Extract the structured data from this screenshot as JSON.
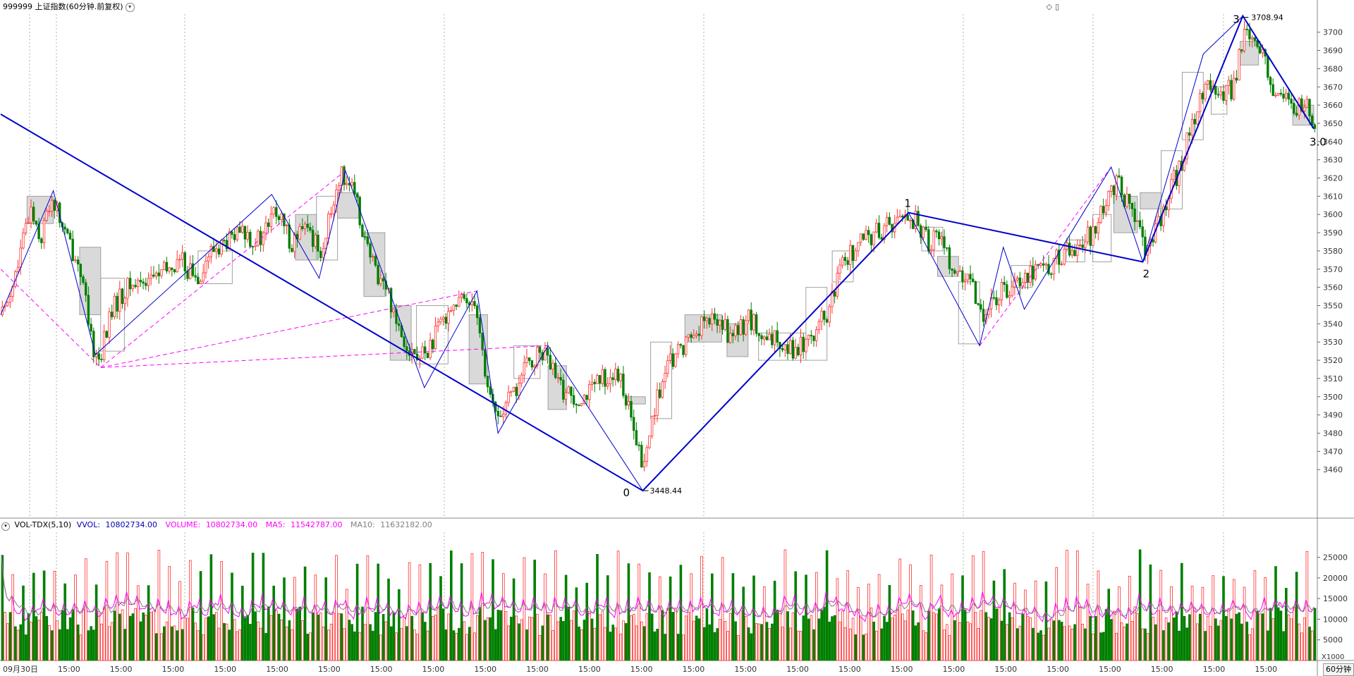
{
  "window": {
    "title": "999999 上证指数(60分钟.前复权)",
    "dropdown_icon": "chevron-down-icon",
    "top_right_icons": [
      "diamond-icon",
      "panel-icon"
    ]
  },
  "markers": {
    "pivot_labels": [
      "0",
      "1",
      "2",
      "3",
      "3.0"
    ],
    "low_price": "3448.44",
    "high_price": "3708.94"
  },
  "indicator": {
    "name": "VOL-TDX(5,10)",
    "vvol_label": "VVOL:",
    "vvol_value": "10802734.00",
    "volume_label": "VOLUME:",
    "volume_value": "10802734.00",
    "ma5_label": "MA5:",
    "ma5_value": "11542787.00",
    "ma10_label": "MA10:",
    "ma10_value": "11632182.00",
    "multiplier_label": "X1000"
  },
  "footer": {
    "period": "60分钟",
    "x_labels": [
      "09月30日",
      "15:00",
      "15:00",
      "15:00",
      "15:00",
      "15:00",
      "15:00",
      "15:00",
      "15:00",
      "15:00",
      "15:00",
      "15:00",
      "15:00",
      "15:00",
      "15:00",
      "15:00",
      "15:00",
      "15:00",
      "15:00",
      "15:00",
      "15:00",
      "15:00",
      "15:00",
      "15:00",
      "15:00"
    ]
  },
  "colors": {
    "up": "#ff3030",
    "down": "#007f00",
    "trend_line": "#0000cc",
    "dash_line": "#ff00ff",
    "ma5": "#ff00ff",
    "ma10": "#808080",
    "box_fill": "#d9d9d9"
  },
  "chart_data": {
    "type": "candlestick",
    "price_axis": {
      "ticks": [
        3460,
        3470,
        3480,
        3490,
        3500,
        3510,
        3520,
        3530,
        3540,
        3550,
        3560,
        3570,
        3580,
        3590,
        3600,
        3610,
        3620,
        3630,
        3640,
        3650,
        3660,
        3670,
        3680,
        3690,
        3700
      ]
    },
    "volume_axis": {
      "ticks": [
        5000,
        10000,
        15000,
        20000,
        25000
      ]
    },
    "pivots": [
      {
        "label": "0",
        "bar": 244,
        "price": 3448.44
      },
      {
        "label": "1",
        "bar": 345,
        "price": 3601
      },
      {
        "label": "2",
        "bar": 434,
        "price": 3574
      },
      {
        "label": "3",
        "bar": 472,
        "price": 3708.94
      },
      {
        "label": "3.0",
        "bar": 499,
        "price": 3647
      }
    ],
    "trend_points": [
      {
        "bar": 0,
        "price": 3655
      },
      {
        "bar": 244,
        "price": 3448.44
      },
      {
        "bar": 345,
        "price": 3601
      },
      {
        "bar": 434,
        "price": 3574
      },
      {
        "bar": 472,
        "price": 3708.94
      },
      {
        "bar": 499,
        "price": 3647
      }
    ],
    "zigzag_points": [
      {
        "bar": 0,
        "price": 3545
      },
      {
        "bar": 20,
        "price": 3613
      },
      {
        "bar": 36,
        "price": 3523
      },
      {
        "bar": 103,
        "price": 3611
      },
      {
        "bar": 121,
        "price": 3565
      },
      {
        "bar": 131,
        "price": 3624
      },
      {
        "bar": 161,
        "price": 3505
      },
      {
        "bar": 181,
        "price": 3558
      },
      {
        "bar": 189,
        "price": 3480
      },
      {
        "bar": 208,
        "price": 3528
      },
      {
        "bar": 244,
        "price": 3448.44
      },
      {
        "bar": 345,
        "price": 3601
      },
      {
        "bar": 372,
        "price": 3528
      },
      {
        "bar": 381,
        "price": 3582
      },
      {
        "bar": 389,
        "price": 3548
      },
      {
        "bar": 422,
        "price": 3626
      },
      {
        "bar": 434,
        "price": 3574
      },
      {
        "bar": 457,
        "price": 3688
      },
      {
        "bar": 472,
        "price": 3708.94
      },
      {
        "bar": 499,
        "price": 3647
      }
    ],
    "dash_lines": [
      {
        "from_bar": 0,
        "from_price": 3570,
        "to_bar": 38,
        "to_price": 3516
      },
      {
        "from_bar": 38,
        "from_price": 3516,
        "to_bar": 131,
        "to_price": 3624
      },
      {
        "from_bar": 38,
        "from_price": 3516,
        "to_bar": 181,
        "to_price": 3558
      },
      {
        "from_bar": 38,
        "from_price": 3516,
        "to_bar": 208,
        "to_price": 3528
      },
      {
        "from_bar": 372,
        "from_price": 3528,
        "to_bar": 422,
        "to_price": 3626
      }
    ],
    "boxes": [
      {
        "from_bar": 10,
        "to_bar": 20,
        "top": 3610,
        "bottom": 3595,
        "filled": true
      },
      {
        "from_bar": 30,
        "to_bar": 38,
        "top": 3582,
        "bottom": 3545,
        "filled": true
      },
      {
        "from_bar": 38,
        "to_bar": 47,
        "top": 3565,
        "bottom": 3525,
        "filled": false
      },
      {
        "from_bar": 75,
        "to_bar": 88,
        "top": 3580,
        "bottom": 3562,
        "filled": false
      },
      {
        "from_bar": 112,
        "to_bar": 120,
        "top": 3600,
        "bottom": 3575,
        "filled": true
      },
      {
        "from_bar": 120,
        "to_bar": 128,
        "top": 3610,
        "bottom": 3575,
        "filled": false
      },
      {
        "from_bar": 128,
        "to_bar": 136,
        "top": 3612,
        "bottom": 3598,
        "filled": true
      },
      {
        "from_bar": 138,
        "to_bar": 146,
        "top": 3590,
        "bottom": 3555,
        "filled": true
      },
      {
        "from_bar": 148,
        "to_bar": 156,
        "top": 3550,
        "bottom": 3520,
        "filled": true
      },
      {
        "from_bar": 158,
        "to_bar": 170,
        "top": 3550,
        "bottom": 3518,
        "filled": false
      },
      {
        "from_bar": 178,
        "to_bar": 185,
        "top": 3545,
        "bottom": 3507,
        "filled": true
      },
      {
        "from_bar": 195,
        "to_bar": 205,
        "top": 3528,
        "bottom": 3510,
        "filled": false
      },
      {
        "from_bar": 208,
        "to_bar": 215,
        "top": 3517,
        "bottom": 3493,
        "filled": true
      },
      {
        "from_bar": 238,
        "to_bar": 245,
        "top": 3500,
        "bottom": 3496,
        "filled": true
      },
      {
        "from_bar": 247,
        "to_bar": 255,
        "top": 3530,
        "bottom": 3488,
        "filled": false
      },
      {
        "from_bar": 260,
        "to_bar": 274,
        "top": 3545,
        "bottom": 3530,
        "filled": true
      },
      {
        "from_bar": 276,
        "to_bar": 284,
        "top": 3540,
        "bottom": 3522,
        "filled": true
      },
      {
        "from_bar": 288,
        "to_bar": 306,
        "top": 3535,
        "bottom": 3520,
        "filled": false
      },
      {
        "from_bar": 306,
        "to_bar": 314,
        "top": 3560,
        "bottom": 3520,
        "filled": false
      },
      {
        "from_bar": 316,
        "to_bar": 324,
        "top": 3580,
        "bottom": 3563,
        "filled": false
      },
      {
        "from_bar": 350,
        "to_bar": 358,
        "top": 3593,
        "bottom": 3580,
        "filled": false
      },
      {
        "from_bar": 356,
        "to_bar": 364,
        "top": 3577,
        "bottom": 3566,
        "filled": true
      },
      {
        "from_bar": 364,
        "to_bar": 372,
        "top": 3563,
        "bottom": 3529,
        "filled": false
      },
      {
        "from_bar": 384,
        "to_bar": 392,
        "top": 3572,
        "bottom": 3560,
        "filled": false
      },
      {
        "from_bar": 405,
        "to_bar": 412,
        "top": 3586,
        "bottom": 3574,
        "filled": false
      },
      {
        "from_bar": 415,
        "to_bar": 422,
        "top": 3600,
        "bottom": 3574,
        "filled": false
      },
      {
        "from_bar": 423,
        "to_bar": 432,
        "top": 3610,
        "bottom": 3590,
        "filled": true
      },
      {
        "from_bar": 433,
        "to_bar": 441,
        "top": 3612,
        "bottom": 3603,
        "filled": true
      },
      {
        "from_bar": 441,
        "to_bar": 449,
        "top": 3635,
        "bottom": 3603,
        "filled": false
      },
      {
        "from_bar": 449,
        "to_bar": 457,
        "top": 3678,
        "bottom": 3641,
        "filled": false
      },
      {
        "from_bar": 460,
        "to_bar": 466,
        "top": 3670,
        "bottom": 3655,
        "filled": false
      },
      {
        "from_bar": 471,
        "to_bar": 478,
        "top": 3695,
        "bottom": 3682,
        "filled": true
      },
      {
        "from_bar": 491,
        "to_bar": 499,
        "top": 3660,
        "bottom": 3649,
        "filled": true
      }
    ],
    "candle_anchors": [
      [
        0,
        3545
      ],
      [
        6,
        3570
      ],
      [
        11,
        3605
      ],
      [
        15,
        3587
      ],
      [
        19,
        3610
      ],
      [
        24,
        3590
      ],
      [
        30,
        3570
      ],
      [
        34,
        3530
      ],
      [
        37,
        3520
      ],
      [
        42,
        3548
      ],
      [
        48,
        3560
      ],
      [
        55,
        3565
      ],
      [
        62,
        3568
      ],
      [
        68,
        3575
      ],
      [
        74,
        3565
      ],
      [
        80,
        3580
      ],
      [
        86,
        3585
      ],
      [
        92,
        3590
      ],
      [
        98,
        3585
      ],
      [
        104,
        3602
      ],
      [
        110,
        3585
      ],
      [
        116,
        3592
      ],
      [
        122,
        3580
      ],
      [
        128,
        3620
      ],
      [
        131,
        3622
      ],
      [
        136,
        3600
      ],
      [
        140,
        3575
      ],
      [
        146,
        3560
      ],
      [
        152,
        3535
      ],
      [
        158,
        3520
      ],
      [
        164,
        3530
      ],
      [
        170,
        3550
      ],
      [
        176,
        3552
      ],
      [
        180,
        3555
      ],
      [
        184,
        3510
      ],
      [
        188,
        3488
      ],
      [
        194,
        3500
      ],
      [
        200,
        3518
      ],
      [
        206,
        3525
      ],
      [
        212,
        3505
      ],
      [
        218,
        3500
      ],
      [
        224,
        3503
      ],
      [
        230,
        3512
      ],
      [
        236,
        3508
      ],
      [
        240,
        3480
      ],
      [
        244,
        3460
      ],
      [
        248,
        3495
      ],
      [
        254,
        3518
      ],
      [
        260,
        3530
      ],
      [
        266,
        3540
      ],
      [
        272,
        3542
      ],
      [
        278,
        3532
      ],
      [
        284,
        3544
      ],
      [
        290,
        3528
      ],
      [
        296,
        3532
      ],
      [
        302,
        3525
      ],
      [
        308,
        3535
      ],
      [
        314,
        3545
      ],
      [
        320,
        3575
      ],
      [
        326,
        3583
      ],
      [
        332,
        3590
      ],
      [
        338,
        3595
      ],
      [
        344,
        3600
      ],
      [
        348,
        3595
      ],
      [
        352,
        3585
      ],
      [
        356,
        3590
      ],
      [
        362,
        3570
      ],
      [
        368,
        3560
      ],
      [
        374,
        3545
      ],
      [
        380,
        3558
      ],
      [
        386,
        3565
      ],
      [
        392,
        3570
      ],
      [
        398,
        3572
      ],
      [
        404,
        3578
      ],
      [
        410,
        3585
      ],
      [
        416,
        3590
      ],
      [
        420,
        3610
      ],
      [
        424,
        3618
      ],
      [
        428,
        3605
      ],
      [
        432,
        3590
      ],
      [
        436,
        3580
      ],
      [
        440,
        3595
      ],
      [
        444,
        3615
      ],
      [
        448,
        3625
      ],
      [
        452,
        3650
      ],
      [
        456,
        3665
      ],
      [
        460,
        3670
      ],
      [
        464,
        3665
      ],
      [
        468,
        3670
      ],
      [
        472,
        3700
      ],
      [
        476,
        3690
      ],
      [
        480,
        3685
      ],
      [
        484,
        3665
      ],
      [
        488,
        3662
      ],
      [
        492,
        3658
      ],
      [
        496,
        3660
      ],
      [
        499,
        3650
      ]
    ],
    "volume_profile": "daily-spike: first hour bar high (~17000-27000), remaining bars ~6000-13000",
    "ma_lines": [
      "MA5",
      "MA10"
    ]
  }
}
